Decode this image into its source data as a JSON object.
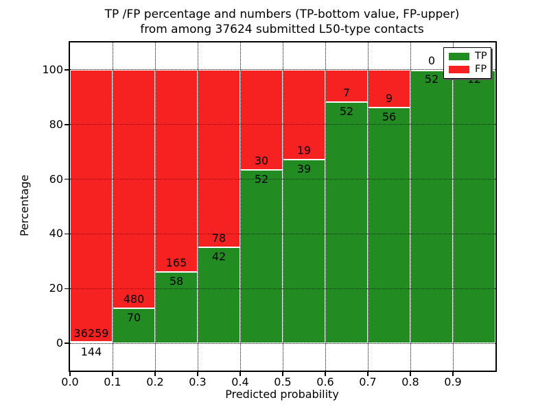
{
  "figure": {
    "title_line1": "TP /FP percentage and numbers (TP-bottom value, FP-upper)",
    "title_line2": "from among 37624 submitted L50-type contacts",
    "xlabel": "Predicted probability",
    "ylabel": "Percentage"
  },
  "chart_data": {
    "type": "bar",
    "subtype": "stacked-percentage",
    "title": "TP /FP percentage and numbers (TP-bottom value, FP-upper) from among 37624 submitted L50-type contacts",
    "xlabel": "Predicted probability",
    "ylabel": "Percentage",
    "total_submitted_contacts": 37624,
    "xlim": [
      0.0,
      1.0
    ],
    "ylim": [
      -10,
      110
    ],
    "grid": "dotted-black-above-bars",
    "x_tick_labels": [
      "0.0",
      "0.1",
      "0.2",
      "0.3",
      "0.4",
      "0.5",
      "0.6",
      "0.7",
      "0.8",
      "0.9"
    ],
    "y_tick_values": [
      0,
      20,
      40,
      60,
      80,
      100
    ],
    "legend": {
      "position": "upper-right",
      "entries": [
        {
          "label": "TP",
          "color": "#228b22"
        },
        {
          "label": "FP",
          "color": "#f62121"
        }
      ]
    },
    "colors": {
      "tp": "#228b22",
      "fp": "#f62121",
      "bar_edge": "#ffffff"
    },
    "bins": [
      {
        "range": [
          0.0,
          0.1
        ],
        "tp": 144,
        "fp": 36259
      },
      {
        "range": [
          0.1,
          0.2
        ],
        "tp": 70,
        "fp": 480
      },
      {
        "range": [
          0.2,
          0.3
        ],
        "tp": 58,
        "fp": 165
      },
      {
        "range": [
          0.3,
          0.4
        ],
        "tp": 42,
        "fp": 78
      },
      {
        "range": [
          0.4,
          0.5
        ],
        "tp": 52,
        "fp": 30
      },
      {
        "range": [
          0.5,
          0.6
        ],
        "tp": 39,
        "fp": 19
      },
      {
        "range": [
          0.6,
          0.7
        ],
        "tp": 52,
        "fp": 7
      },
      {
        "range": [
          0.7,
          0.8
        ],
        "tp": 56,
        "fp": 9
      },
      {
        "range": [
          0.8,
          0.9
        ],
        "tp": 52,
        "fp": 0
      },
      {
        "range": [
          0.9,
          1.0
        ],
        "tp": 12,
        "fp": 0
      }
    ]
  }
}
